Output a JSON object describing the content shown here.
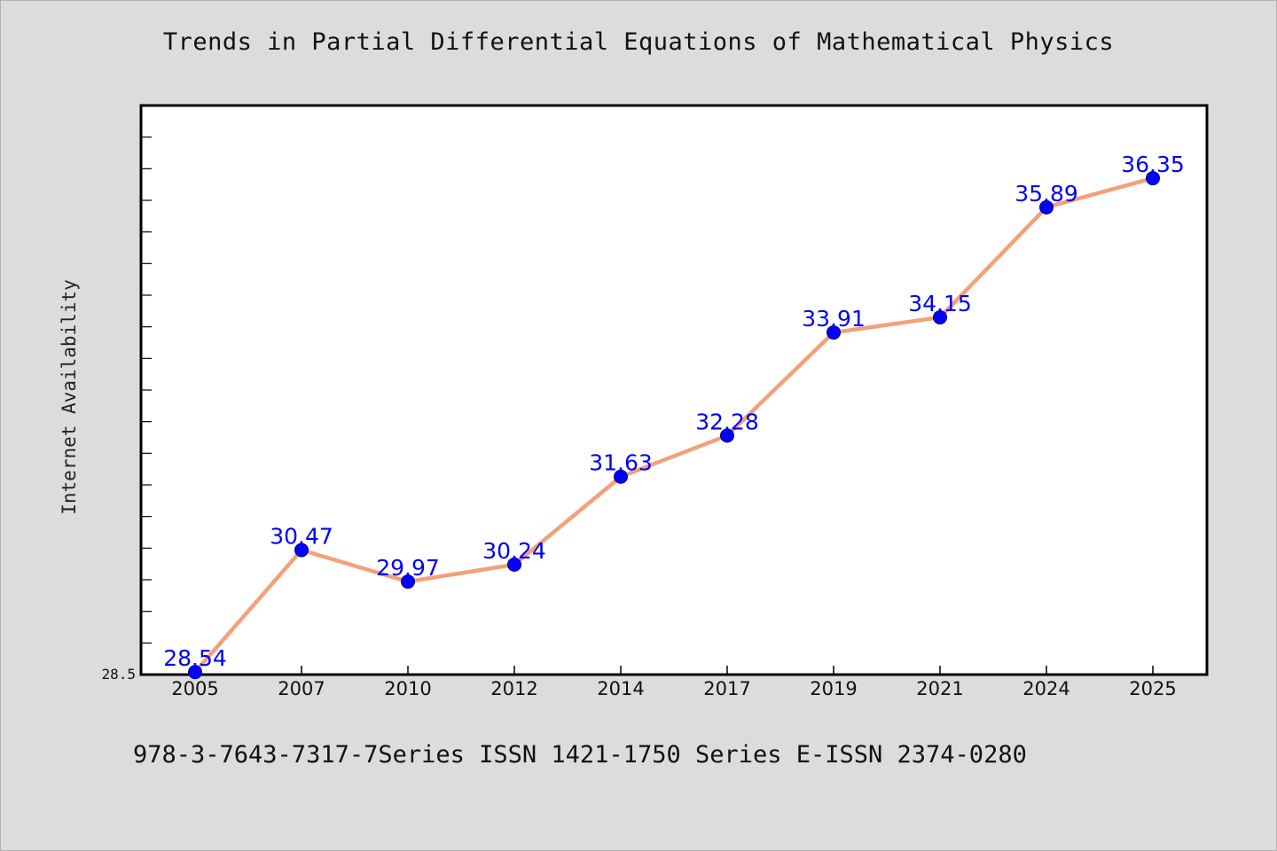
{
  "chart_data": {
    "type": "line",
    "title": "Trends in Partial Differential Equations of Mathematical Physics",
    "ylabel": "Internet Availability",
    "xlabel": "",
    "categories": [
      "2005",
      "2007",
      "2010",
      "2012",
      "2014",
      "2017",
      "2019",
      "2021",
      "2024",
      "2025"
    ],
    "series": [
      {
        "values": [
          28.54,
          30.47,
          29.97,
          30.24,
          31.63,
          32.28,
          33.91,
          34.15,
          35.89,
          36.35
        ],
        "data_labels": [
          "28.54",
          "30.47",
          "29.97",
          "30.24",
          "31.63",
          "32.28",
          "33.91",
          "34.15",
          "35.89",
          "36.35"
        ]
      }
    ],
    "ylim": [
      28.5,
      37.5
    ],
    "y_tick_label": "28.5",
    "grid": false,
    "line_color": "#f4a07a",
    "marker_color": "#0000ff",
    "label_color": "#0000ff",
    "plot_background": "#ffffff",
    "page_background": "#dcdcdc"
  },
  "footer": {
    "text": "978-3-7643-7317-7Series ISSN 1421-1750 Series E-ISSN 2374-0280"
  }
}
